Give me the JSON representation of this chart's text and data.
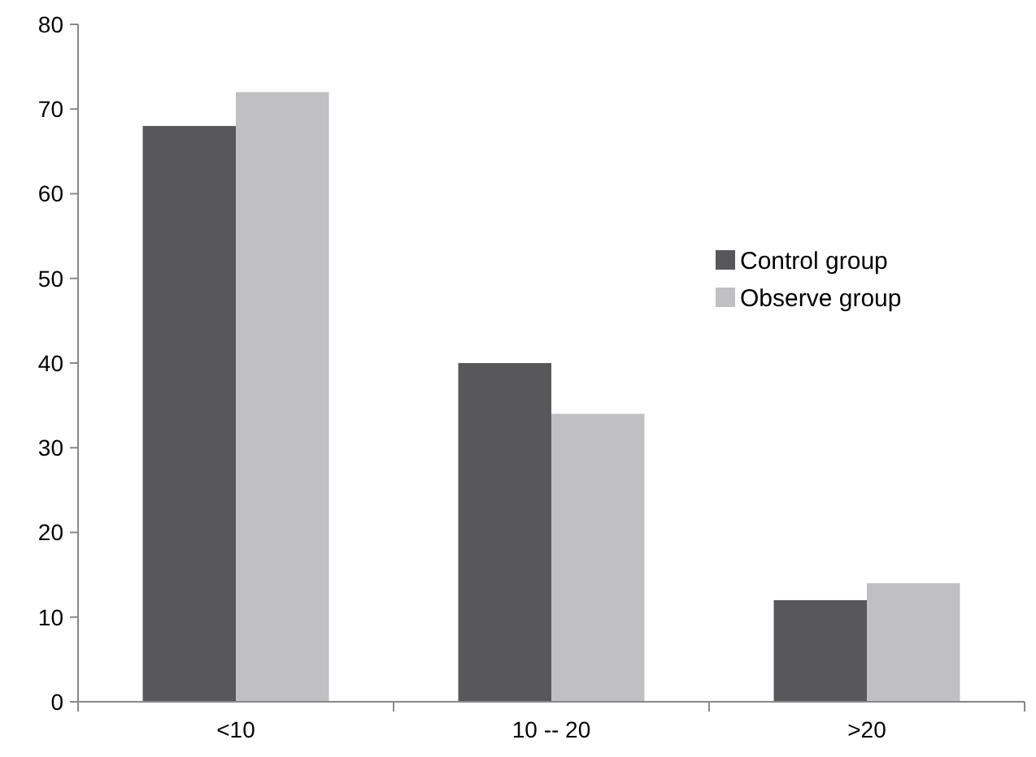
{
  "chart_data": {
    "type": "bar",
    "categories": [
      "<10",
      "10 -- 20",
      ">20"
    ],
    "series": [
      {
        "name": "Control group",
        "color": "#58585a",
        "values": [
          68,
          40,
          12
        ]
      },
      {
        "name": "Observe group",
        "color": "#c0c0c2",
        "values": [
          72,
          34,
          14
        ]
      }
    ],
    "ylim": [
      0,
      80
    ],
    "yticks": [
      0,
      10,
      20,
      30,
      40,
      50,
      60,
      70,
      80
    ],
    "grid": false,
    "legend": "right"
  }
}
